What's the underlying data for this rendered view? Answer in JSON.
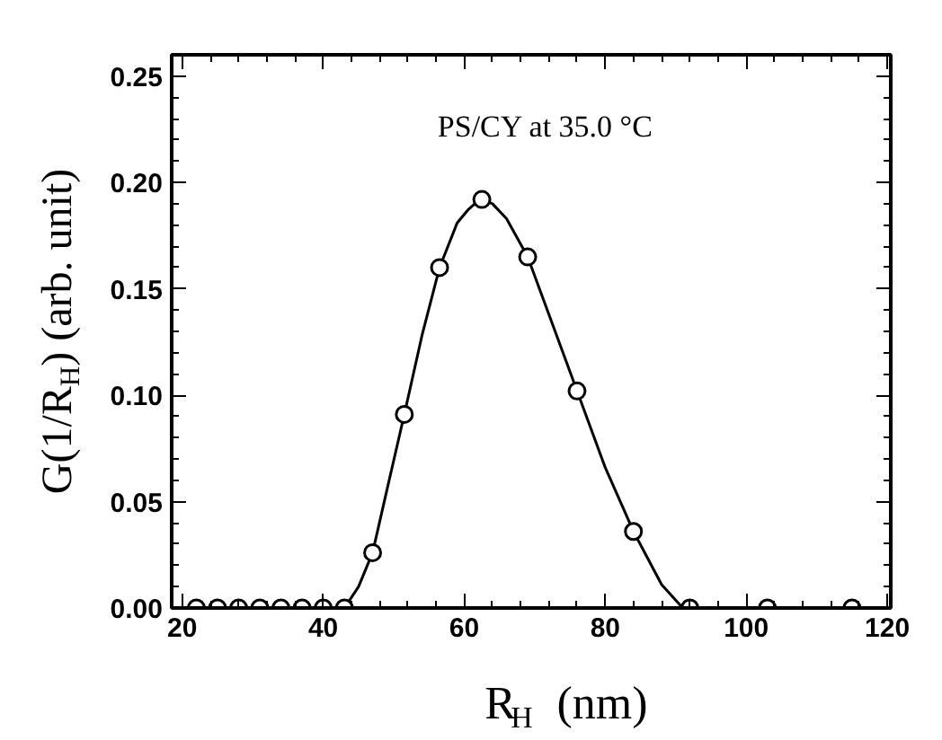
{
  "chart_data": {
    "type": "scatter",
    "xlabel": "R$_{H}$ (nm)",
    "ylabel": "G(1/R$_{H}$) (arb. unit)",
    "annotations": [
      "PS/CY at 35.0 °C"
    ],
    "xlim": [
      18.5,
      120.5
    ],
    "xticks": [
      20,
      40,
      60,
      80,
      100,
      120
    ],
    "ylim": [
      0,
      0.26
    ],
    "yticks": [
      {
        "value": 0,
        "label": "0.00"
      },
      {
        "value": 0.05,
        "label": "0.05"
      },
      {
        "value": 0.1,
        "label": "0.10"
      },
      {
        "value": 0.15,
        "label": "0.15"
      },
      {
        "value": 0.2,
        "label": "0.20"
      },
      {
        "value": 0.25,
        "label": "0.25"
      }
    ],
    "grid": false,
    "series": [
      {
        "marker": "circle",
        "color": "#000000",
        "x": [
          22,
          25,
          28,
          31,
          34,
          37,
          40,
          43,
          47,
          51.5,
          56.5,
          62.5,
          69,
          76,
          84,
          92,
          103,
          115
        ],
        "values": [
          0,
          0,
          0,
          0,
          0,
          0,
          0,
          0,
          0.026,
          0.091,
          0.16,
          0.192,
          0.165,
          0.102,
          0.036,
          0,
          0,
          0
        ]
      },
      {
        "type": "line",
        "color": "#000000",
        "x": [
          20,
          43,
          45,
          47,
          49,
          51.5,
          54,
          56.5,
          59,
          60.5,
          61.5,
          62.5,
          64,
          66,
          69,
          72,
          76,
          80,
          84,
          88,
          91,
          120
        ],
        "values": [
          0,
          0,
          0.01,
          0.026,
          0.055,
          0.091,
          0.128,
          0.16,
          0.181,
          0.187,
          0.19,
          0.192,
          0.19,
          0.183,
          0.165,
          0.138,
          0.102,
          0.066,
          0.036,
          0.011,
          0,
          0
        ]
      }
    ]
  }
}
